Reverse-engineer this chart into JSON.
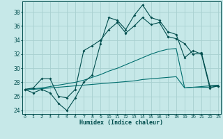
{
  "xlabel": "Humidex (Indice chaleur)",
  "x_ticks": [
    0,
    1,
    2,
    3,
    4,
    5,
    6,
    7,
    8,
    9,
    10,
    11,
    12,
    13,
    14,
    15,
    16,
    17,
    18,
    19,
    20,
    21,
    22,
    23
  ],
  "ylim": [
    23.5,
    39.5
  ],
  "xlim": [
    -0.3,
    23.3
  ],
  "y_ticks": [
    24,
    26,
    28,
    30,
    32,
    34,
    36,
    38
  ],
  "bg_color": "#c6e8e8",
  "grid_color": "#a8d0d0",
  "line_color_dark": "#004d4d",
  "line_color_mid": "#006e6e",
  "series1_x": [
    0,
    1,
    2,
    3,
    4,
    5,
    6,
    7,
    8,
    9,
    10,
    11,
    12,
    13,
    14,
    15,
    16,
    17,
    18,
    19,
    20,
    21,
    22,
    23
  ],
  "series1_y": [
    27.0,
    26.5,
    27.0,
    26.5,
    25.0,
    24.0,
    25.8,
    28.0,
    29.0,
    33.5,
    37.2,
    36.8,
    35.5,
    37.5,
    39.0,
    37.2,
    36.8,
    35.2,
    34.8,
    31.5,
    32.5,
    32.0,
    27.2,
    27.5
  ],
  "series2_x": [
    0,
    1,
    2,
    3,
    4,
    5,
    6,
    7,
    8,
    9,
    10,
    11,
    12,
    13,
    14,
    15,
    16,
    17,
    18,
    19,
    20,
    21,
    22,
    23
  ],
  "series2_y": [
    27.0,
    27.2,
    28.5,
    28.5,
    26.0,
    25.8,
    27.0,
    32.5,
    33.2,
    34.0,
    35.5,
    36.5,
    35.0,
    36.0,
    37.2,
    36.2,
    36.5,
    34.5,
    34.2,
    33.5,
    32.0,
    32.2,
    27.5,
    27.5
  ],
  "series3_x": [
    0,
    1,
    2,
    3,
    4,
    5,
    6,
    7,
    8,
    9,
    10,
    11,
    12,
    13,
    14,
    15,
    16,
    17,
    18,
    19,
    20,
    21,
    22,
    23
  ],
  "series3_y": [
    27.0,
    27.1,
    27.2,
    27.4,
    27.6,
    27.8,
    28.0,
    28.3,
    28.7,
    29.1,
    29.6,
    30.0,
    30.5,
    31.0,
    31.5,
    32.0,
    32.4,
    32.7,
    32.8,
    27.2,
    27.3,
    27.3,
    27.3,
    27.5
  ],
  "series4_x": [
    0,
    1,
    2,
    3,
    4,
    5,
    6,
    7,
    8,
    9,
    10,
    11,
    12,
    13,
    14,
    15,
    16,
    17,
    18,
    19,
    20,
    21,
    22,
    23
  ],
  "series4_y": [
    27.0,
    27.0,
    27.1,
    27.2,
    27.3,
    27.4,
    27.5,
    27.6,
    27.7,
    27.8,
    27.9,
    28.0,
    28.1,
    28.2,
    28.4,
    28.5,
    28.6,
    28.7,
    28.8,
    27.2,
    27.3,
    27.4,
    27.5,
    27.6
  ]
}
